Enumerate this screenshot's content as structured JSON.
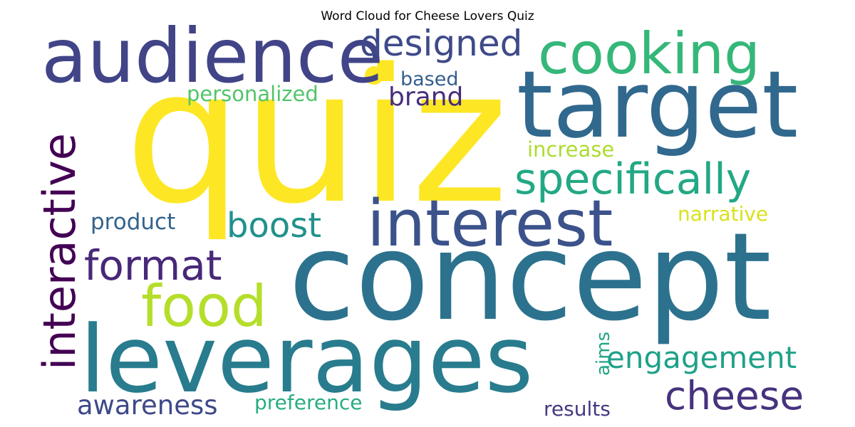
{
  "chart_data": {
    "type": "word_cloud",
    "title": "Word Cloud for Cheese Lovers Quiz",
    "colormap": "viridis",
    "words": [
      {
        "text": "quiz",
        "weight": 1.0,
        "color": "#fde725"
      },
      {
        "text": "concept",
        "weight": 0.78,
        "color": "#2c728e"
      },
      {
        "text": "leverages",
        "weight": 0.56,
        "color": "#287c8e"
      },
      {
        "text": "target",
        "weight": 0.56,
        "color": "#31688e"
      },
      {
        "text": "audience",
        "weight": 0.48,
        "color": "#414487"
      },
      {
        "text": "interest",
        "weight": 0.4,
        "color": "#3b528b"
      },
      {
        "text": "cooking",
        "weight": 0.36,
        "color": "#35b779"
      },
      {
        "text": "food",
        "weight": 0.36,
        "color": "#b5de2b"
      },
      {
        "text": "interactive",
        "weight": 0.32,
        "color": "#440154"
      },
      {
        "text": "specifically",
        "weight": 0.3,
        "color": "#22a884"
      },
      {
        "text": "format",
        "weight": 0.26,
        "color": "#482878"
      },
      {
        "text": "cheese",
        "weight": 0.26,
        "color": "#46327e"
      },
      {
        "text": "designed",
        "weight": 0.22,
        "color": "#3e4a89"
      },
      {
        "text": "boost",
        "weight": 0.22,
        "color": "#21918c"
      },
      {
        "text": "engagement",
        "weight": 0.21,
        "color": "#1fa188"
      },
      {
        "text": "awareness",
        "weight": 0.18,
        "color": "#3e4989"
      },
      {
        "text": "brand",
        "weight": 0.16,
        "color": "#472d7b"
      },
      {
        "text": "product",
        "weight": 0.14,
        "color": "#33638d"
      },
      {
        "text": "personalized",
        "weight": 0.13,
        "color": "#52c569"
      },
      {
        "text": "increase",
        "weight": 0.13,
        "color": "#addc30"
      },
      {
        "text": "narrative",
        "weight": 0.13,
        "color": "#d8e219"
      },
      {
        "text": "results",
        "weight": 0.13,
        "color": "#443983"
      },
      {
        "text": "preference",
        "weight": 0.13,
        "color": "#27ad81"
      },
      {
        "text": "based",
        "weight": 0.12,
        "color": "#355f8d"
      },
      {
        "text": "aims",
        "weight": 0.1,
        "color": "#20a486"
      }
    ]
  }
}
